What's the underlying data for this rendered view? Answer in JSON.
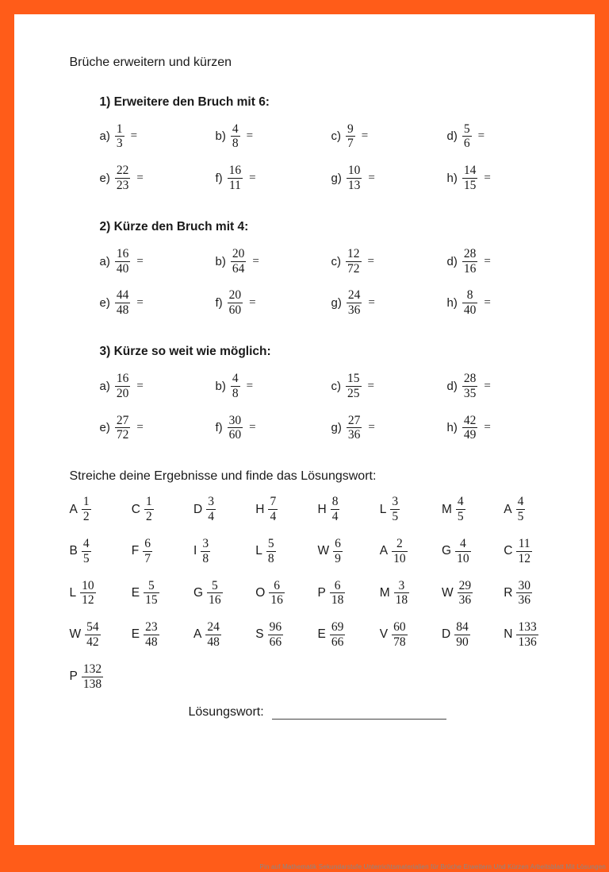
{
  "colors": {
    "border": "#ff5c19",
    "page_bg": "#ffffff",
    "text": "#1a1a1a"
  },
  "title": "Brüche erweitern und kürzen",
  "sections": [
    {
      "heading": "1)  Erweitere den Bruch mit 6:",
      "problems": [
        {
          "label": "a)",
          "num": "1",
          "den": "3"
        },
        {
          "label": "b)",
          "num": "4",
          "den": "8"
        },
        {
          "label": "c)",
          "num": "9",
          "den": "7"
        },
        {
          "label": "d)",
          "num": "5",
          "den": "6"
        },
        {
          "label": "e)",
          "num": "22",
          "den": "23"
        },
        {
          "label": "f)",
          "num": "16",
          "den": "11"
        },
        {
          "label": "g)",
          "num": "10",
          "den": "13"
        },
        {
          "label": "h)",
          "num": "14",
          "den": "15"
        }
      ]
    },
    {
      "heading": "2)  Kürze den Bruch mit 4:",
      "problems": [
        {
          "label": "a)",
          "num": "16",
          "den": "40"
        },
        {
          "label": "b)",
          "num": "20",
          "den": "64"
        },
        {
          "label": "c)",
          "num": "12",
          "den": "72"
        },
        {
          "label": "d)",
          "num": "28",
          "den": "16"
        },
        {
          "label": "e)",
          "num": "44",
          "den": "48"
        },
        {
          "label": "f)",
          "num": "20",
          "den": "60"
        },
        {
          "label": "g)",
          "num": "24",
          "den": "36"
        },
        {
          "label": "h)",
          "num": "8",
          "den": "40"
        }
      ]
    },
    {
      "heading": "3)  Kürze so weit wie möglich:",
      "problems": [
        {
          "label": "a)",
          "num": "16",
          "den": "20"
        },
        {
          "label": "b)",
          "num": "4",
          "den": "8"
        },
        {
          "label": "c)",
          "num": "15",
          "den": "25"
        },
        {
          "label": "d)",
          "num": "28",
          "den": "35"
        },
        {
          "label": "e)",
          "num": "27",
          "den": "72"
        },
        {
          "label": "f)",
          "num": "30",
          "den": "60"
        },
        {
          "label": "g)",
          "num": "27",
          "den": "36"
        },
        {
          "label": "h)",
          "num": "42",
          "den": "49"
        }
      ]
    }
  ],
  "instruction": "Streiche deine Ergebnisse und finde das Lösungswort:",
  "solution_grid": [
    {
      "letter": "A",
      "num": "1",
      "den": "2"
    },
    {
      "letter": "C",
      "num": "1",
      "den": "2"
    },
    {
      "letter": "D",
      "num": "3",
      "den": "4"
    },
    {
      "letter": "H",
      "num": "7",
      "den": "4"
    },
    {
      "letter": "H",
      "num": "8",
      "den": "4"
    },
    {
      "letter": "L",
      "num": "3",
      "den": "5"
    },
    {
      "letter": "M",
      "num": "4",
      "den": "5"
    },
    {
      "letter": "A",
      "num": "4",
      "den": "5"
    },
    {
      "letter": "B",
      "num": "4",
      "den": "5"
    },
    {
      "letter": "F",
      "num": "6",
      "den": "7"
    },
    {
      "letter": "I",
      "num": "3",
      "den": "8"
    },
    {
      "letter": "L",
      "num": "5",
      "den": "8"
    },
    {
      "letter": "W",
      "num": "6",
      "den": "9"
    },
    {
      "letter": "A",
      "num": "2",
      "den": "10"
    },
    {
      "letter": "G",
      "num": "4",
      "den": "10"
    },
    {
      "letter": "C",
      "num": "11",
      "den": "12"
    },
    {
      "letter": "L",
      "num": "10",
      "den": "12"
    },
    {
      "letter": "E",
      "num": "5",
      "den": "15"
    },
    {
      "letter": "G",
      "num": "5",
      "den": "16"
    },
    {
      "letter": "O",
      "num": "6",
      "den": "16"
    },
    {
      "letter": "P",
      "num": "6",
      "den": "18"
    },
    {
      "letter": "M",
      "num": "3",
      "den": "18"
    },
    {
      "letter": "W",
      "num": "29",
      "den": "36"
    },
    {
      "letter": "R",
      "num": "30",
      "den": "36"
    },
    {
      "letter": "W",
      "num": "54",
      "den": "42"
    },
    {
      "letter": "E",
      "num": "23",
      "den": "48"
    },
    {
      "letter": "A",
      "num": "24",
      "den": "48"
    },
    {
      "letter": "S",
      "num": "96",
      "den": "66"
    },
    {
      "letter": "E",
      "num": "69",
      "den": "66"
    },
    {
      "letter": "V",
      "num": "60",
      "den": "78"
    },
    {
      "letter": "D",
      "num": "84",
      "den": "90"
    },
    {
      "letter": "N",
      "num": "133",
      "den": "136"
    },
    {
      "letter": "P",
      "num": "132",
      "den": "138"
    }
  ],
  "solution_label": "Lösungswort:",
  "caption": "Pin auf Mathematik Sekundarstufe Unterrichtsmaterialien für Brüche Erweitern Und Kürzen Arbeitsblatt Mit Lösungen"
}
